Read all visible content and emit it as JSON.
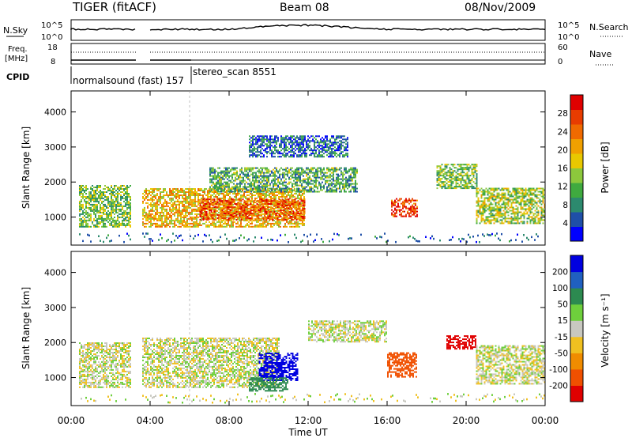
{
  "header": {
    "radar": "TIGER (fitACF)",
    "beam": "Beam 08",
    "date": "08/Nov/2009"
  },
  "info_panels": {
    "nsky": {
      "label": "N.Sky",
      "ticks": [
        "10^5",
        "10^0"
      ],
      "right_label": "N.Search",
      "right_ticks": [
        "10^5",
        "10^0"
      ]
    },
    "freq": {
      "label_1": "Freq.",
      "label_2": "[MHz]",
      "ticks": [
        "18",
        "8"
      ],
      "right_label": "Nave",
      "right_ticks": [
        "60",
        "0"
      ]
    },
    "cpid": {
      "label": "CPID",
      "modes": [
        "normalsound (fast) 157",
        "stereo_scan 8551"
      ]
    }
  },
  "chart_data": [
    {
      "type": "heatmap",
      "name": "power-panel",
      "ylabel": "Slant Range [km]",
      "ylim": [
        200,
        4600
      ],
      "yticks": [
        1000,
        2000,
        3000,
        4000
      ],
      "xlabel": "Time UT",
      "xlim": [
        0,
        24
      ],
      "xticks": [
        "00:00",
        "04:00",
        "08:00",
        "12:00",
        "16:00",
        "20:00",
        "00:00"
      ],
      "colorbar": {
        "label": "Power [dB]",
        "ticks": [
          "28",
          "24",
          "20",
          "16",
          "12",
          "8",
          "4"
        ],
        "colors": [
          "#0000ff",
          "#1f4fa8",
          "#2c8a6e",
          "#3faa3f",
          "#8cc83c",
          "#e8c800",
          "#f0a000",
          "#f06a00",
          "#e83c00",
          "#e00000"
        ]
      },
      "data_gaps_hours": [
        [
          3.0,
          3.6
        ]
      ],
      "echo_regions": [
        {
          "t": [
            0.4,
            3.0
          ],
          "r": [
            700,
            1900
          ],
          "value": 14
        },
        {
          "t": [
            3.6,
            11.8
          ],
          "r": [
            700,
            1800
          ],
          "value": 20
        },
        {
          "t": [
            6.5,
            11.8
          ],
          "r": [
            900,
            1500
          ],
          "value": 26
        },
        {
          "t": [
            7.0,
            14.5
          ],
          "r": [
            1700,
            2400
          ],
          "value": 12
        },
        {
          "t": [
            9.0,
            14.0
          ],
          "r": [
            2700,
            3300
          ],
          "value": 8
        },
        {
          "t": [
            16.2,
            17.5
          ],
          "r": [
            1000,
            1500
          ],
          "value": 28
        },
        {
          "t": [
            18.5,
            20.5
          ],
          "r": [
            1800,
            2500
          ],
          "value": 14
        },
        {
          "t": [
            20.5,
            24
          ],
          "r": [
            800,
            1800
          ],
          "value": 16
        }
      ]
    },
    {
      "type": "heatmap",
      "name": "velocity-panel",
      "ylabel": "Slant Range [km]",
      "ylim": [
        200,
        4600
      ],
      "yticks": [
        1000,
        2000,
        3000,
        4000
      ],
      "xlabel": "Time UT",
      "xlim": [
        0,
        24
      ],
      "xticks": [
        "00:00",
        "04:00",
        "08:00",
        "12:00",
        "16:00",
        "20:00",
        "00:00"
      ],
      "colorbar": {
        "label": "Velocity [m s⁻¹]",
        "ticks": [
          "200",
          "100",
          "50",
          "15",
          "-15",
          "-50",
          "-100",
          "-200"
        ],
        "colors": [
          "#0000e0",
          "#2060c0",
          "#2c8a50",
          "#6ecf3c",
          "#c8c8c0",
          "#f0c020",
          "#f08c00",
          "#f05000",
          "#e00000"
        ]
      },
      "data_gaps_hours": [
        [
          3.0,
          3.6
        ]
      ],
      "echo_regions": [
        {
          "t": [
            0.4,
            3.0
          ],
          "r": [
            700,
            2000
          ],
          "value": 0
        },
        {
          "t": [
            3.6,
            10.5
          ],
          "r": [
            700,
            2100
          ],
          "value": 0
        },
        {
          "t": [
            9.5,
            11.5
          ],
          "r": [
            900,
            1700
          ],
          "value": 200
        },
        {
          "t": [
            9.0,
            11.0
          ],
          "r": [
            600,
            1000
          ],
          "value": 50
        },
        {
          "t": [
            12.0,
            16.0
          ],
          "r": [
            2000,
            2600
          ],
          "value": 0
        },
        {
          "t": [
            16.0,
            17.5
          ],
          "r": [
            1000,
            1700
          ],
          "value": -100
        },
        {
          "t": [
            19.0,
            20.5
          ],
          "r": [
            1800,
            2200
          ],
          "value": -200
        },
        {
          "t": [
            20.5,
            24
          ],
          "r": [
            800,
            1900
          ],
          "value": 0
        }
      ]
    }
  ]
}
